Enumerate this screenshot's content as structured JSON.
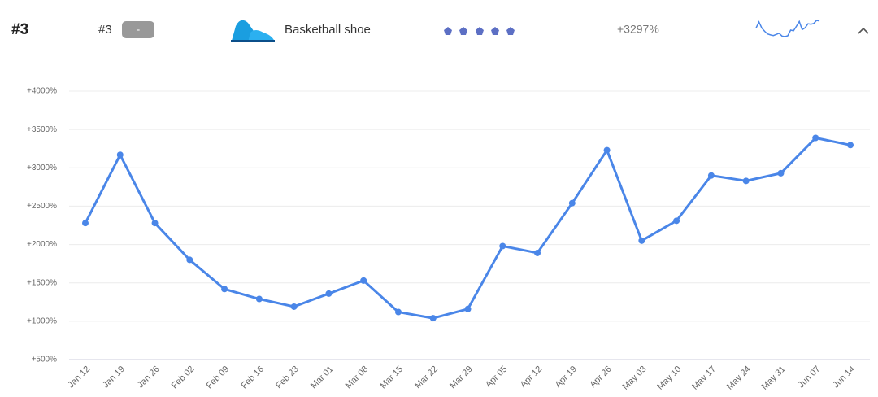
{
  "header": {
    "rank": "#3",
    "position": "#3",
    "change": "-",
    "product": "Basketball shoe",
    "growth": "+3297%"
  },
  "chart_data": {
    "type": "line",
    "categories": [
      "Jan 12",
      "Jan 19",
      "Jan 26",
      "Feb 02",
      "Feb 09",
      "Feb 16",
      "Feb 23",
      "Mar 01",
      "Mar 08",
      "Mar 15",
      "Mar 22",
      "Mar 29",
      "Apr 05",
      "Apr 12",
      "Apr 19",
      "Apr 26",
      "May 03",
      "May 10",
      "May 17",
      "May 24",
      "May 31",
      "Jun 07",
      "Jun 14"
    ],
    "series": [
      {
        "color": "#4a86e8",
        "values": [
          2280,
          3170,
          2280,
          1800,
          1420,
          1290,
          1190,
          1360,
          1530,
          1120,
          1040,
          1160,
          1980,
          1890,
          2540,
          3230,
          2050,
          2310,
          2900,
          2830,
          2930,
          3390,
          3297
        ]
      }
    ],
    "ylim": [
      500,
      4000
    ],
    "yticks": [
      {
        "value": 500,
        "label": "+500%"
      },
      {
        "value": 1000,
        "label": "+1000%"
      },
      {
        "value": 1500,
        "label": "+1500%"
      },
      {
        "value": 2000,
        "label": "+2000%"
      },
      {
        "value": 2500,
        "label": "+2500%"
      },
      {
        "value": 3000,
        "label": "+3000%"
      },
      {
        "value": 3500,
        "label": "+3500%"
      },
      {
        "value": 4000,
        "label": "+4000%"
      }
    ],
    "grid": true
  }
}
